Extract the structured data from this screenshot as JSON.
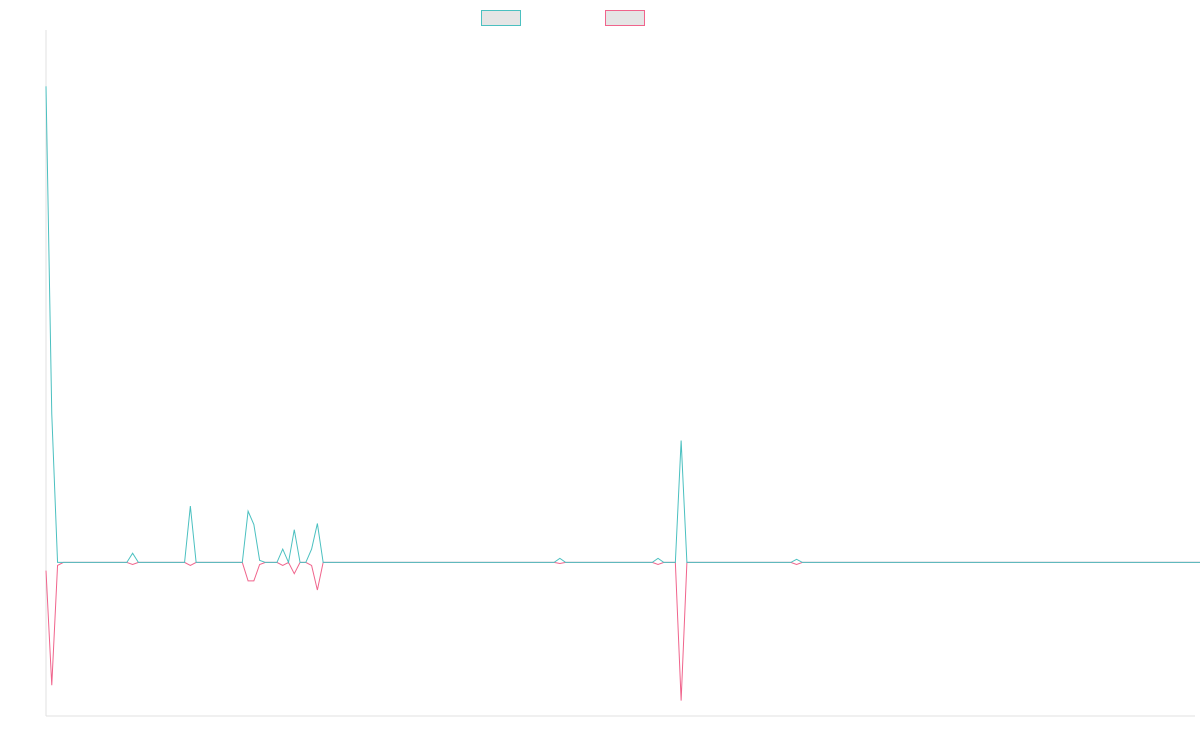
{
  "chart_data": {
    "type": "line",
    "title": "",
    "xlabel": "",
    "ylabel": "",
    "x_count": 200,
    "ylim": [
      -150,
      520
    ],
    "grid": false,
    "legend_position": "top-center",
    "series": [
      {
        "label": "",
        "color": "#4bc0c0",
        "fill": "#e5e5e5",
        "values": [
          465,
          145,
          0,
          0,
          0,
          0,
          0,
          0,
          0,
          0,
          0,
          0,
          0,
          0,
          0,
          9,
          0,
          0,
          0,
          0,
          0,
          0,
          0,
          0,
          0,
          55,
          0,
          0,
          0,
          0,
          0,
          0,
          0,
          0,
          0,
          50,
          37,
          2,
          0,
          0,
          0,
          13,
          0,
          32,
          0,
          0,
          13,
          38,
          0,
          0,
          0,
          0,
          0,
          0,
          0,
          0,
          0,
          0,
          0,
          0,
          0,
          0,
          0,
          0,
          0,
          0,
          0,
          0,
          0,
          0,
          0,
          0,
          0,
          0,
          0,
          0,
          0,
          0,
          0,
          0,
          0,
          0,
          0,
          0,
          0,
          0,
          0,
          0,
          0,
          4,
          0,
          0,
          0,
          0,
          0,
          0,
          0,
          0,
          0,
          0,
          0,
          0,
          0,
          0,
          0,
          0,
          4,
          0,
          0,
          0,
          119,
          0,
          0,
          0,
          0,
          0,
          0,
          0,
          0,
          0,
          0,
          0,
          0,
          0,
          0,
          0,
          0,
          0,
          0,
          0,
          3,
          0,
          0,
          0,
          0,
          0,
          0,
          0,
          0,
          0,
          0,
          0,
          0,
          0,
          0,
          0,
          0,
          0,
          0,
          0,
          0,
          0,
          0,
          0,
          0,
          0,
          0,
          0,
          0,
          0,
          0,
          0,
          0,
          0,
          0,
          0,
          0,
          0,
          0,
          0,
          0,
          0,
          0,
          0,
          0,
          0,
          0,
          0,
          0,
          0,
          0,
          0,
          0,
          0,
          0,
          0,
          0,
          0,
          0,
          0,
          0,
          0,
          0,
          0,
          0,
          0,
          0,
          0,
          0,
          0,
          0
        ]
      },
      {
        "label": "",
        "color": "#f0648c",
        "fill": "#e5e5e5",
        "values": [
          -8,
          -120,
          -3,
          0,
          0,
          0,
          0,
          0,
          0,
          0,
          0,
          0,
          0,
          0,
          0,
          -2,
          0,
          0,
          0,
          0,
          0,
          0,
          0,
          0,
          0,
          -3,
          0,
          0,
          0,
          0,
          0,
          0,
          0,
          0,
          0,
          -18,
          -18,
          -2,
          0,
          0,
          0,
          -3,
          0,
          -11,
          0,
          0,
          -3,
          -27,
          0,
          0,
          0,
          0,
          0,
          0,
          0,
          0,
          0,
          0,
          0,
          0,
          0,
          0,
          0,
          0,
          0,
          0,
          0,
          0,
          0,
          0,
          0,
          0,
          0,
          0,
          0,
          0,
          0,
          0,
          0,
          0,
          0,
          0,
          0,
          0,
          0,
          0,
          0,
          0,
          0,
          -1,
          0,
          0,
          0,
          0,
          0,
          0,
          0,
          0,
          0,
          0,
          0,
          0,
          0,
          0,
          0,
          0,
          -2,
          0,
          0,
          0,
          -135,
          0,
          0,
          0,
          0,
          0,
          0,
          0,
          0,
          0,
          0,
          0,
          0,
          0,
          0,
          0,
          0,
          0,
          0,
          0,
          -2,
          0,
          0,
          0,
          0,
          0,
          0,
          0,
          0,
          0,
          0,
          0,
          0,
          0,
          0,
          0,
          0,
          0,
          0,
          0,
          0,
          0,
          0,
          0,
          0,
          0,
          0,
          0,
          0,
          0,
          0,
          0,
          0,
          0,
          0,
          0,
          0,
          0,
          0,
          0,
          0,
          0,
          0,
          0,
          0,
          0,
          0,
          0,
          0,
          0,
          0,
          0,
          0,
          0,
          0,
          0,
          0,
          0,
          0,
          0,
          0,
          0,
          0,
          0,
          0,
          0,
          0,
          0,
          0,
          0,
          0
        ]
      }
    ]
  }
}
